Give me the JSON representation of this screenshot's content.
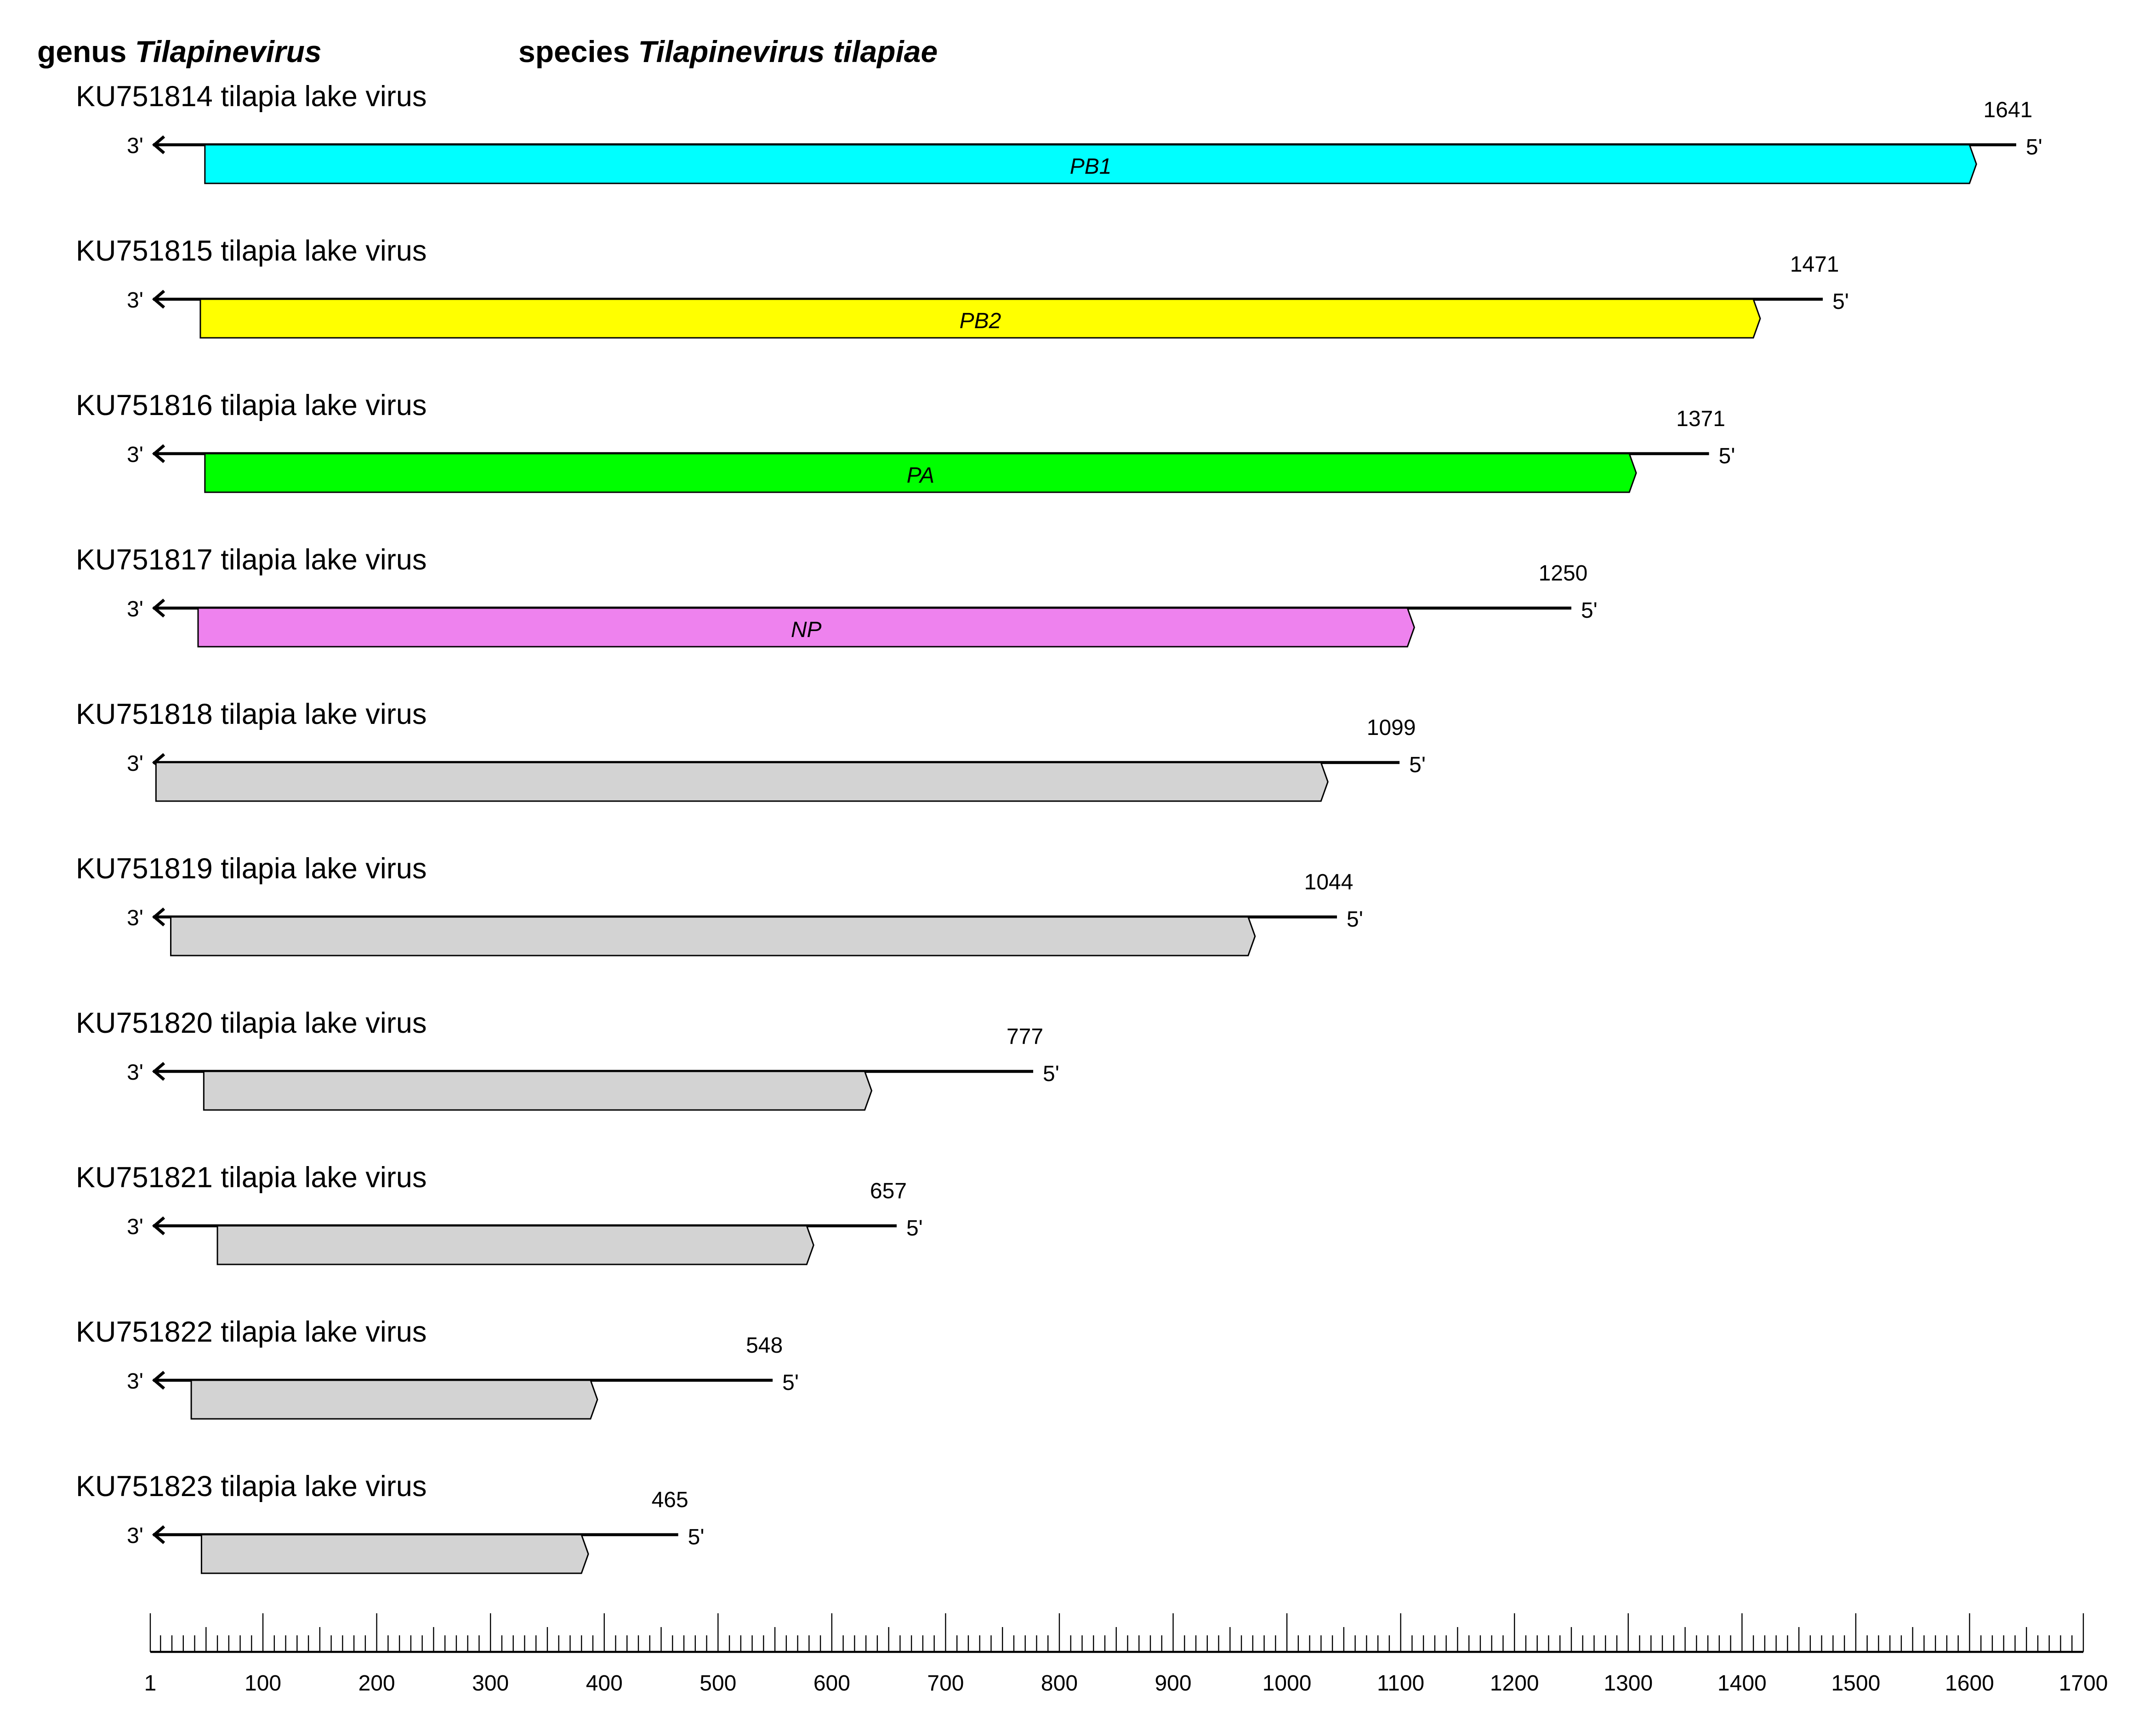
{
  "header": {
    "genus_label": "genus",
    "genus": "Tilapinevirus",
    "species_label": "species",
    "species": "Tilapinevirus tilapiae"
  },
  "end_labels": {
    "three_prime": "3'",
    "five_prime": "5'"
  },
  "segments": [
    {
      "title": "KU751814 tilapia lake virus",
      "length": 1641,
      "orf": {
        "start": 49,
        "end": 1606,
        "label": "PB1",
        "color": "#00ffff"
      }
    },
    {
      "title": "KU751815 tilapia lake virus",
      "length": 1471,
      "orf": {
        "start": 45,
        "end": 1416,
        "label": "PB2",
        "color": "#ffff00"
      }
    },
    {
      "title": "KU751816 tilapia lake virus",
      "length": 1371,
      "orf": {
        "start": 49,
        "end": 1307,
        "label": "PA",
        "color": "#00ff00"
      }
    },
    {
      "title": "KU751817 tilapia lake virus",
      "length": 1250,
      "orf": {
        "start": 43,
        "end": 1112,
        "label": "NP",
        "color": "#ee82ee"
      }
    },
    {
      "title": "KU751818 tilapia lake virus",
      "length": 1099,
      "orf": {
        "start": 6,
        "end": 1036,
        "label": "",
        "color": "#d3d3d3"
      }
    },
    {
      "title": "KU751819 tilapia lake virus",
      "length": 1044,
      "orf": {
        "start": 19,
        "end": 972,
        "label": "",
        "color": "#d3d3d3"
      }
    },
    {
      "title": "KU751820 tilapia lake virus",
      "length": 777,
      "orf": {
        "start": 48,
        "end": 635,
        "label": "",
        "color": "#d3d3d3"
      }
    },
    {
      "title": "KU751821 tilapia lake virus",
      "length": 657,
      "orf": {
        "start": 60,
        "end": 584,
        "label": "",
        "color": "#d3d3d3"
      }
    },
    {
      "title": "KU751822 tilapia lake virus",
      "length": 548,
      "orf": {
        "start": 37,
        "end": 394,
        "label": "",
        "color": "#d3d3d3"
      }
    },
    {
      "title": "KU751823 tilapia lake virus",
      "length": 465,
      "orf": {
        "start": 46,
        "end": 386,
        "label": "",
        "color": "#d3d3d3"
      }
    }
  ],
  "scale": {
    "min": 1,
    "max": 1700,
    "minor_step": 10,
    "mid_step": 50,
    "tick_labels": [
      "1",
      "100",
      "200",
      "300",
      "400",
      "500",
      "600",
      "700",
      "800",
      "900",
      "1000",
      "1100",
      "1200",
      "1300",
      "1400",
      "1500",
      "1600",
      "1700"
    ]
  }
}
